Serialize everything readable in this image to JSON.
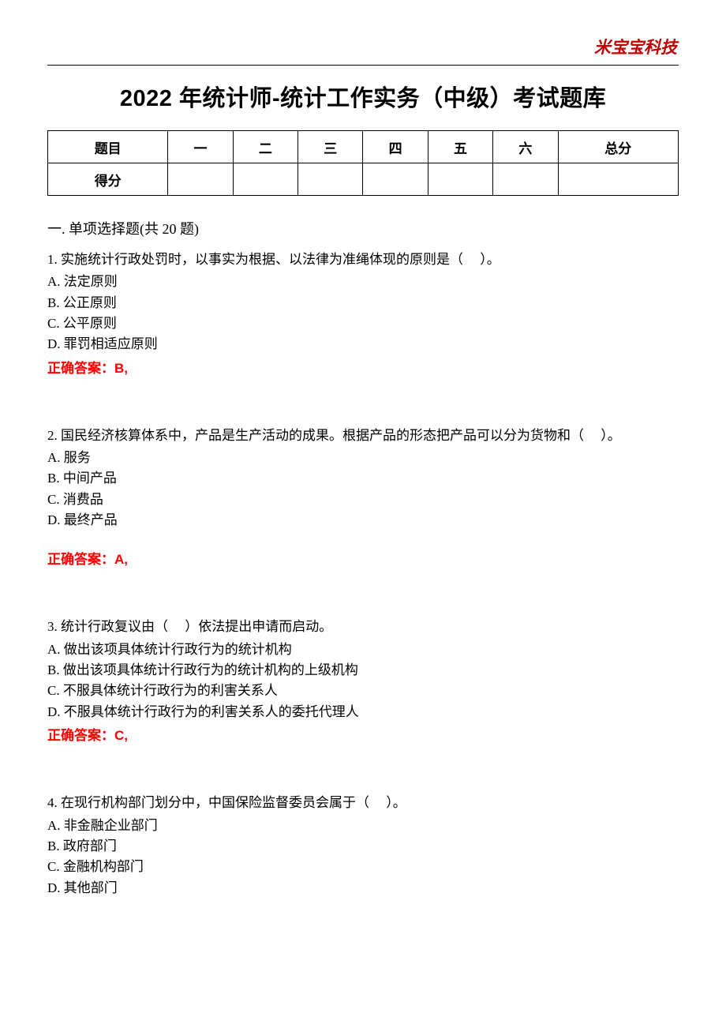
{
  "watermark": "米宝宝科技",
  "title": "2022 年统计师-统计工作实务（中级）考试题库",
  "score_table": {
    "header": [
      "题目",
      "一",
      "二",
      "三",
      "四",
      "五",
      "六",
      "总分"
    ],
    "row_label": "得分"
  },
  "section": {
    "heading": "一. 单项选择题(共 20 题)"
  },
  "answer_prefix": "正确答案：",
  "questions": [
    {
      "number": "1.",
      "text": "实施统计行政处罚时，以事实为根据、以法律为准绳体现的原则是（　 ）。",
      "options": {
        "A": "法定原则",
        "B": "公正原则",
        "C": "公平原则",
        "D": "罪罚相适应原则"
      },
      "answer": "B,"
    },
    {
      "number": "2.",
      "text": "国民经济核算体系中，产品是生产活动的成果。根据产品的形态把产品可以分为货物和（　 ）。",
      "options": {
        "A": "服务",
        "B": "中间产品",
        "C": "消费品",
        "D": "最终产品"
      },
      "answer": "A,",
      "answer_spaced": true
    },
    {
      "number": "3.",
      "text": "统计行政复议由（　 ）依法提出申请而启动。",
      "options": {
        "A": "做出该项具体统计行政行为的统计机构",
        "B": "做出该项具体统计行政行为的统计机构的上级机构",
        "C": "不服具体统计行政行为的利害关系人",
        "D": "不服具体统计行政行为的利害关系人的委托代理人"
      },
      "answer": "C,"
    },
    {
      "number": "4.",
      "text": "在现行机构部门划分中，中国保险监督委员会属于（　 ）。",
      "options": {
        "A": "非金融企业部门",
        "B": "政府部门",
        "C": "金融机构部门",
        "D": "其他部门"
      },
      "answer": null
    }
  ],
  "colors": {
    "text": "#000000",
    "answer": "#ff0000",
    "watermark": "#c00000",
    "background": "#ffffff",
    "border": "#000000"
  },
  "typography": {
    "title_fontsize": 29,
    "body_fontsize": 17,
    "section_fontsize": 18,
    "watermark_fontsize": 21
  }
}
